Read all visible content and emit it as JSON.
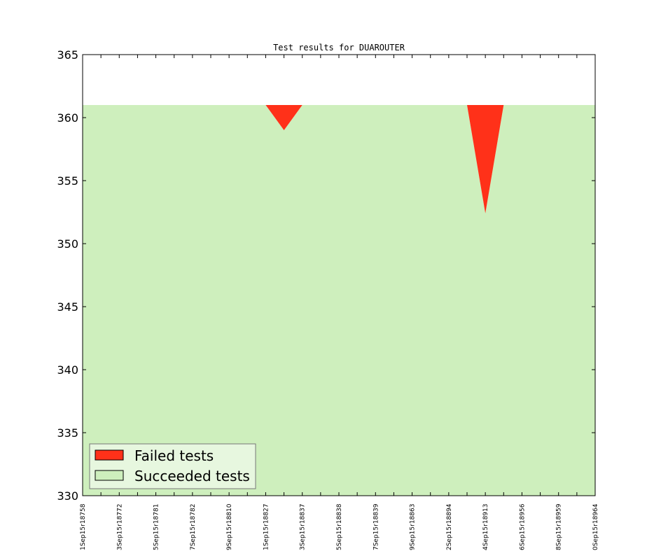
{
  "chart_data": {
    "type": "area",
    "title": "Test results for DUAROUTER",
    "xlabel": "",
    "ylabel": "",
    "ylim": [
      330,
      365
    ],
    "yticks": [
      330,
      335,
      340,
      345,
      350,
      355,
      360,
      365
    ],
    "categories": [
      "1Sep15r18758",
      "",
      "3Sep15r18772",
      "",
      "5Sep15r18781",
      "",
      "7Sep15r18782",
      "",
      "9Sep15r18810",
      "",
      "1Sep15r18827",
      "",
      "3Sep15r18837",
      "",
      "5Sep15r18838",
      "",
      "7Sep15r18839",
      "",
      "9Sep15r18863",
      "",
      "2Sep15r18894",
      "",
      "4Sep15r18913",
      "",
      "6Sep15r18956",
      "",
      "8Sep15r18959",
      "",
      "0Sep15r18964"
    ],
    "total": 361,
    "series": [
      {
        "name": "Failed tests",
        "color": "#ff3119",
        "values": [
          0,
          0,
          0,
          0,
          0,
          0,
          0,
          0,
          0,
          0,
          0,
          2,
          0,
          0,
          0,
          0,
          0,
          0,
          0,
          0,
          0,
          0,
          8.6,
          0,
          0,
          0,
          0,
          0,
          0
        ]
      },
      {
        "name": "Succeeded tests",
        "color": "#ceefbd",
        "values": [
          361,
          361,
          361,
          361,
          361,
          361,
          361,
          361,
          361,
          361,
          361,
          359,
          361,
          361,
          361,
          361,
          361,
          361,
          361,
          361,
          361,
          361,
          352.4,
          361,
          361,
          361,
          361,
          361,
          361
        ]
      }
    ],
    "legend": "lower-left",
    "grid": false
  }
}
